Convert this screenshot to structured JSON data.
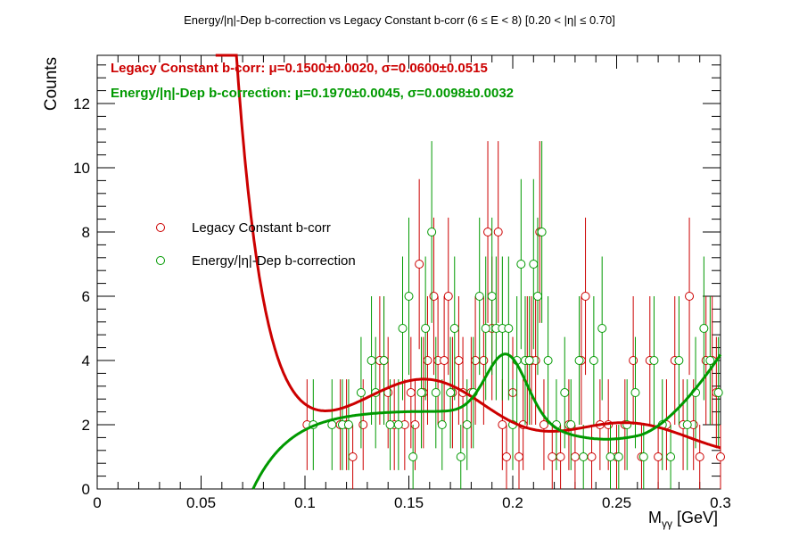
{
  "title": "Energy/|η|-Dep b-correction vs Legacy Constant b-corr   (6 ≤ E < 8)   [0.20 < |η| ≤ 0.70]",
  "stats": {
    "legacy": "Legacy Constant b-corr: μ=0.1500±0.0020,  σ=0.0600±0.0515",
    "energy": "Energy/|η|-Dep b-correction: μ=0.1970±0.0045,  σ=0.0098±0.0032"
  },
  "legend": {
    "legacy": "Legacy Constant b-corr",
    "energy": "Energy/|η|-Dep b-correction"
  },
  "axes": {
    "ylabel": "Counts",
    "xlabel_main": "M",
    "xlabel_sub": "γγ",
    "xlabel_unit": " [GeV]"
  },
  "chart_data": {
    "type": "scatter",
    "xlim": [
      0,
      0.3
    ],
    "ylim": [
      0,
      13.5
    ],
    "x_ticks": [
      "0",
      "0.05",
      "0.1",
      "0.15",
      "0.2",
      "0.25",
      "0.3"
    ],
    "y_ticks": [
      "0",
      "2",
      "4",
      "6",
      "8",
      "10",
      "12"
    ],
    "grid": false,
    "colors": {
      "legacy": "#cc0000",
      "energy": "#009900"
    },
    "series": [
      {
        "name": "Legacy Constant b-corr",
        "points": [
          [
            0.101,
            2
          ],
          [
            0.117,
            2
          ],
          [
            0.12,
            2
          ],
          [
            0.123,
            1
          ],
          [
            0.128,
            2
          ],
          [
            0.136,
            4
          ],
          [
            0.138,
            4
          ],
          [
            0.14,
            3
          ],
          [
            0.143,
            2
          ],
          [
            0.148,
            2
          ],
          [
            0.151,
            3
          ],
          [
            0.153,
            2
          ],
          [
            0.155,
            7
          ],
          [
            0.157,
            3
          ],
          [
            0.159,
            4
          ],
          [
            0.162,
            6
          ],
          [
            0.164,
            4
          ],
          [
            0.167,
            4
          ],
          [
            0.169,
            6
          ],
          [
            0.171,
            3
          ],
          [
            0.174,
            4
          ],
          [
            0.176,
            3
          ],
          [
            0.18,
            3
          ],
          [
            0.182,
            4
          ],
          [
            0.186,
            4
          ],
          [
            0.188,
            8
          ],
          [
            0.19,
            5
          ],
          [
            0.193,
            8
          ],
          [
            0.195,
            2
          ],
          [
            0.197,
            1
          ],
          [
            0.2,
            3
          ],
          [
            0.203,
            1
          ],
          [
            0.205,
            2
          ],
          [
            0.207,
            4
          ],
          [
            0.209,
            4
          ],
          [
            0.211,
            4
          ],
          [
            0.213,
            8
          ],
          [
            0.215,
            2
          ],
          [
            0.219,
            1
          ],
          [
            0.223,
            1
          ],
          [
            0.227,
            2
          ],
          [
            0.23,
            1
          ],
          [
            0.233,
            4
          ],
          [
            0.235,
            6
          ],
          [
            0.238,
            1
          ],
          [
            0.242,
            2
          ],
          [
            0.246,
            2
          ],
          [
            0.25,
            1
          ],
          [
            0.254,
            2
          ],
          [
            0.258,
            4
          ],
          [
            0.262,
            1
          ],
          [
            0.266,
            4
          ],
          [
            0.27,
            1
          ],
          [
            0.274,
            2
          ],
          [
            0.278,
            4
          ],
          [
            0.282,
            2
          ],
          [
            0.285,
            6
          ],
          [
            0.287,
            2
          ],
          [
            0.29,
            1
          ],
          [
            0.293,
            4
          ],
          [
            0.296,
            4
          ],
          [
            0.298,
            3
          ],
          [
            0.3,
            1
          ]
        ]
      },
      {
        "name": "Energy/|η|-Dep b-correction",
        "points": [
          [
            0.104,
            2
          ],
          [
            0.113,
            2
          ],
          [
            0.118,
            2
          ],
          [
            0.121,
            2
          ],
          [
            0.127,
            3
          ],
          [
            0.132,
            4
          ],
          [
            0.134,
            3
          ],
          [
            0.138,
            4
          ],
          [
            0.141,
            2
          ],
          [
            0.145,
            2
          ],
          [
            0.147,
            5
          ],
          [
            0.15,
            6
          ],
          [
            0.152,
            1
          ],
          [
            0.156,
            3
          ],
          [
            0.158,
            5
          ],
          [
            0.161,
            8
          ],
          [
            0.163,
            3
          ],
          [
            0.166,
            2
          ],
          [
            0.17,
            3
          ],
          [
            0.172,
            5
          ],
          [
            0.175,
            1
          ],
          [
            0.178,
            2
          ],
          [
            0.181,
            3
          ],
          [
            0.184,
            6
          ],
          [
            0.187,
            5
          ],
          [
            0.19,
            6
          ],
          [
            0.192,
            5
          ],
          [
            0.195,
            5
          ],
          [
            0.198,
            5
          ],
          [
            0.2,
            2
          ],
          [
            0.202,
            4
          ],
          [
            0.204,
            7
          ],
          [
            0.206,
            4
          ],
          [
            0.208,
            4
          ],
          [
            0.21,
            7
          ],
          [
            0.212,
            6
          ],
          [
            0.214,
            8
          ],
          [
            0.217,
            4
          ],
          [
            0.221,
            2
          ],
          [
            0.225,
            3
          ],
          [
            0.228,
            2
          ],
          [
            0.232,
            4
          ],
          [
            0.234,
            1
          ],
          [
            0.239,
            4
          ],
          [
            0.243,
            5
          ],
          [
            0.247,
            1
          ],
          [
            0.251,
            1
          ],
          [
            0.255,
            2
          ],
          [
            0.259,
            3
          ],
          [
            0.263,
            1
          ],
          [
            0.268,
            4
          ],
          [
            0.272,
            2
          ],
          [
            0.276,
            1
          ],
          [
            0.28,
            4
          ],
          [
            0.284,
            2
          ],
          [
            0.288,
            3
          ],
          [
            0.292,
            5
          ],
          [
            0.295,
            4
          ],
          [
            0.299,
            3
          ]
        ]
      }
    ]
  }
}
